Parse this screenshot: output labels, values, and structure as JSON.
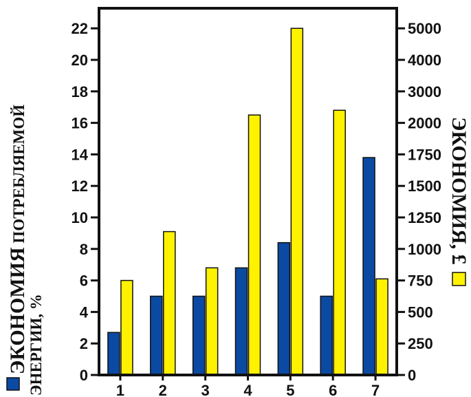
{
  "chart_data": {
    "type": "bar",
    "categories": [
      "1",
      "2",
      "3",
      "4",
      "5",
      "6",
      "7"
    ],
    "series": [
      {
        "axis": "left",
        "color": "#0b4aa3",
        "values": [
          2.7,
          5.0,
          5.0,
          6.8,
          8.4,
          5.0,
          13.8
        ]
      },
      {
        "axis": "right",
        "color": "#fff200",
        "values_plotted_left_scale": [
          6.0,
          9.1,
          6.8,
          16.5,
          22.0,
          16.8,
          6.1
        ]
      }
    ],
    "left_axis": {
      "label_bold": "ЭКОНОМИЯ",
      "label_rest": " ПОТРЕБЛЯЕМОЙ",
      "label_line2": "ЭНЕРГИИ, %",
      "ylim": [
        0,
        23
      ],
      "ticks": [
        "0",
        "2",
        "4",
        "6",
        "8",
        "10",
        "12",
        "14",
        "16",
        "18",
        "20",
        "22"
      ]
    },
    "right_axis": {
      "label": "ЭКОНОМИЯ, £",
      "ticks": [
        "0",
        "250",
        "500",
        "750",
        "1000",
        "1250",
        "1500",
        "1750",
        "2000",
        "3000",
        "4000",
        "5000"
      ]
    },
    "grid": false,
    "legend": "axis-labels"
  }
}
